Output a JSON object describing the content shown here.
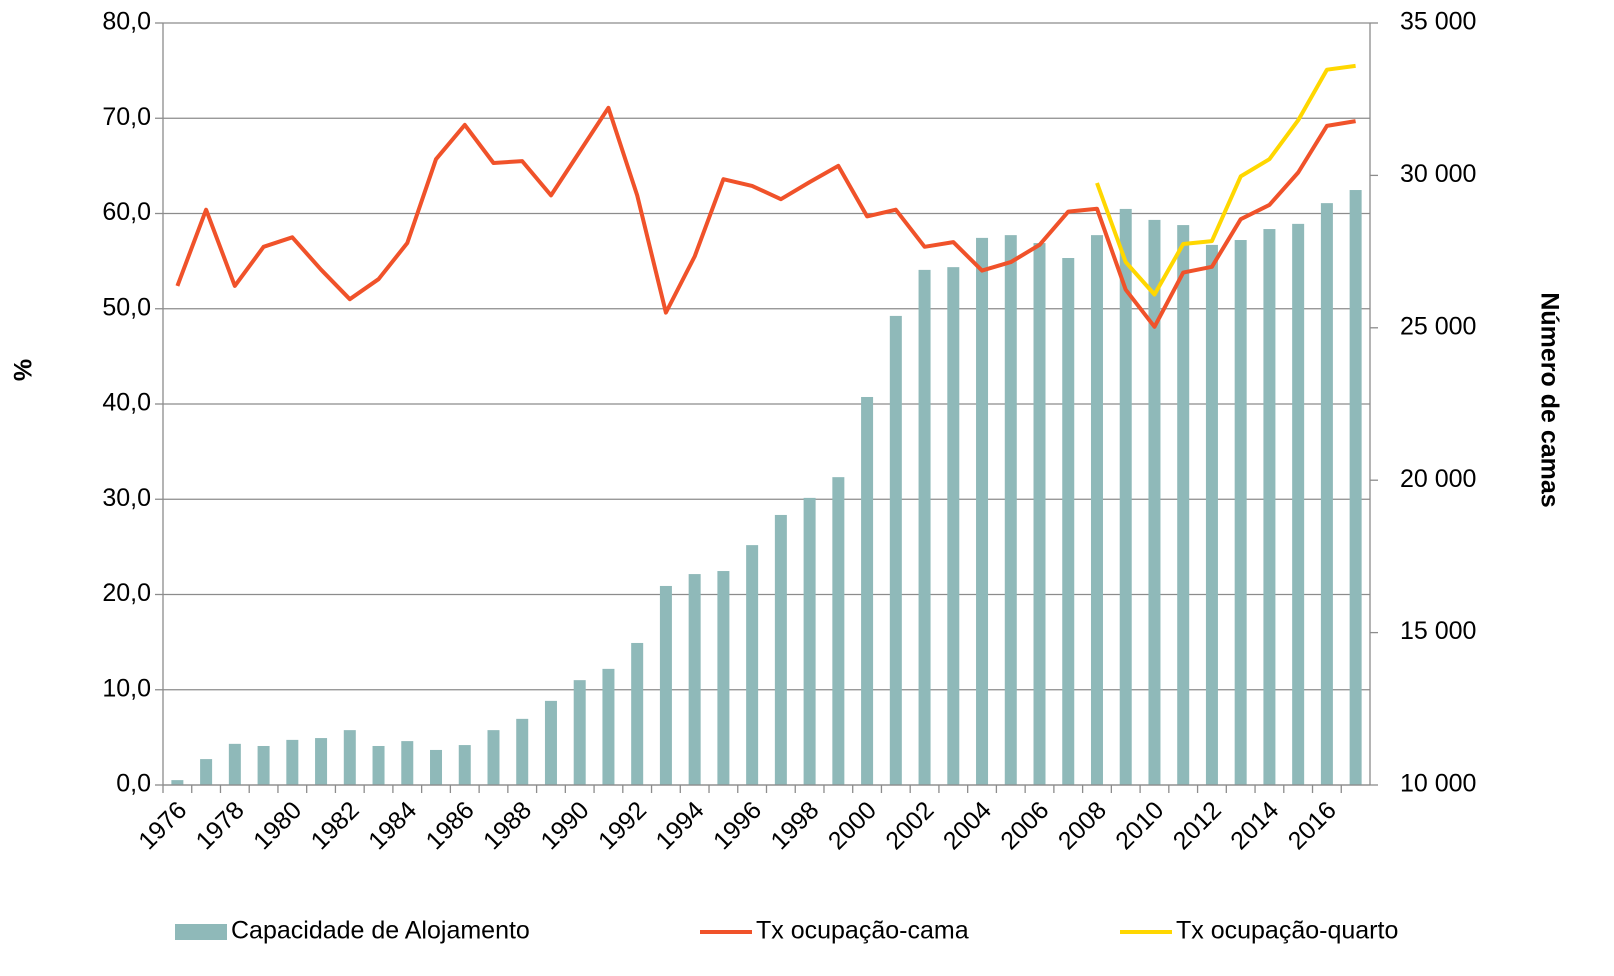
{
  "chart_data": {
    "type": "bar",
    "categories": [
      "1976",
      null,
      "1978",
      null,
      "1980",
      null,
      "1982",
      null,
      "1984",
      null,
      "1986",
      null,
      "1988",
      null,
      "1990",
      null,
      "1992",
      null,
      "1994",
      null,
      "1996",
      null,
      "1998",
      null,
      "2000",
      null,
      "2002",
      null,
      "2004",
      null,
      "2006",
      null,
      "2008",
      null,
      "2010",
      null,
      "2012",
      null,
      "2014",
      null,
      "2016",
      null
    ],
    "ylabel": "%",
    "y2label": "Número de camas",
    "ylim": [
      0,
      80
    ],
    "yticks": [
      {
        "value": 0,
        "label": "0,0"
      },
      {
        "value": 10,
        "label": "10,0"
      },
      {
        "value": 20,
        "label": "20,0"
      },
      {
        "value": 30,
        "label": "30,0"
      },
      {
        "value": 40,
        "label": "40,0"
      },
      {
        "value": 50,
        "label": "50,0"
      },
      {
        "value": 60,
        "label": "60,0"
      },
      {
        "value": 70,
        "label": "70,0"
      },
      {
        "value": 80,
        "label": "80,0"
      }
    ],
    "y2lim": [
      10000,
      35000
    ],
    "y2ticks": [
      {
        "value": 10000,
        "label": "10 000"
      },
      {
        "value": 15000,
        "label": "15 000"
      },
      {
        "value": 20000,
        "label": "20 000"
      },
      {
        "value": 25000,
        "label": "25 000"
      },
      {
        "value": 30000,
        "label": "30 000"
      },
      {
        "value": 35000,
        "label": "35 000"
      }
    ],
    "grid": true,
    "legend": "bottom",
    "series": [
      {
        "name": "Capacidade de Alojamento",
        "type": "bar",
        "axis": "y2",
        "color": "#8fb9b9",
        "values": [
          10160,
          10850,
          11350,
          11280,
          11480,
          11540,
          11800,
          11280,
          11440,
          11150,
          11310,
          11800,
          12170,
          12760,
          13440,
          13810,
          14660,
          16530,
          16920,
          17020,
          17870,
          18860,
          19420,
          20100,
          22730,
          25390,
          26900,
          26990,
          27950,
          28040,
          27780,
          27290,
          28040,
          28900,
          28540,
          28370,
          27720,
          27880,
          28240,
          28410,
          29090,
          29520
        ]
      },
      {
        "name": "Tx ocupação-cama",
        "type": "line",
        "color": "#f0522a",
        "values": [
          52.4,
          60.4,
          52.4,
          56.5,
          57.5,
          54.1,
          51.0,
          53.1,
          56.9,
          65.7,
          69.3,
          65.3,
          65.5,
          61.9,
          66.5,
          71.1,
          61.9,
          49.6,
          55.5,
          63.6,
          62.9,
          61.5,
          63.3,
          65.0,
          59.7,
          60.4,
          56.5,
          57.0,
          54.0,
          54.9,
          56.7,
          60.2,
          60.5,
          52.0,
          48.1,
          53.8,
          54.4,
          59.4,
          60.9,
          64.3,
          69.2,
          69.7
        ]
      },
      {
        "name": "Tx ocupação-quarto",
        "type": "line",
        "color": "#ffd700",
        "values": [
          null,
          null,
          null,
          null,
          null,
          null,
          null,
          null,
          null,
          null,
          null,
          null,
          null,
          null,
          null,
          null,
          null,
          null,
          null,
          null,
          null,
          null,
          null,
          null,
          null,
          null,
          null,
          null,
          null,
          null,
          null,
          null,
          63.2,
          54.9,
          51.5,
          56.8,
          57.1,
          63.9,
          65.7,
          69.8,
          75.1,
          75.5
        ]
      }
    ]
  }
}
